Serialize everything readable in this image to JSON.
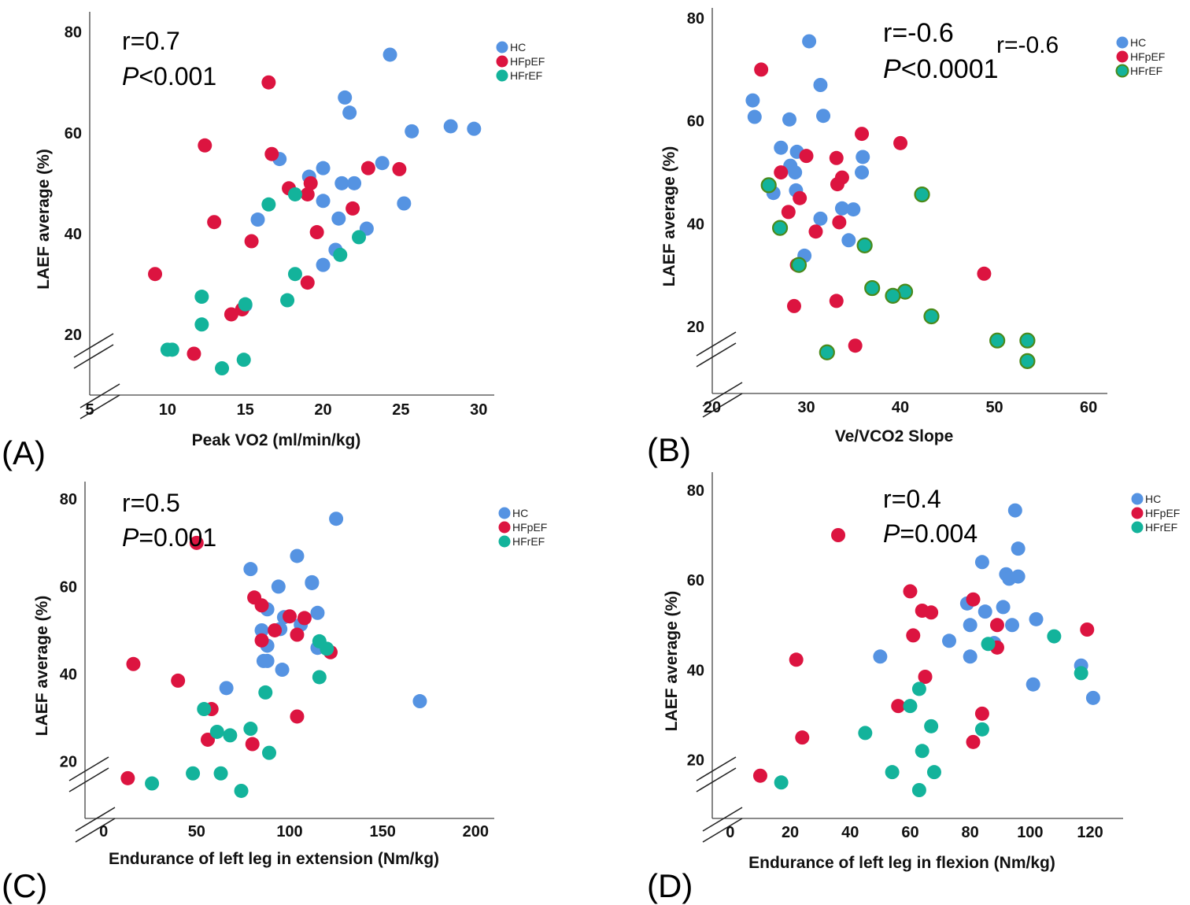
{
  "figure": {
    "colors": {
      "HC": "#5593e2",
      "HFpEF": "#dc1440",
      "HFrEF": "#13b39b",
      "HFrEF_outline": "#4a8a1a"
    },
    "icon": "scatter-plot-icon"
  },
  "chart_data": [
    {
      "type": "scatter",
      "panel_label": "(A)",
      "stat_r": "r=0.7",
      "stat_p_italic": "P",
      "stat_p_rest": "<0.001",
      "xlabel": "Peak VO2 (ml/min/kg)",
      "ylabel": "LAEF average (%)",
      "xlim": [
        5,
        31
      ],
      "ylim": [
        8,
        84
      ],
      "xticks": [
        5,
        10,
        15,
        20,
        25,
        30
      ],
      "yticks": [
        20,
        40,
        60,
        80
      ],
      "legend": [
        "HC",
        "HFpEF",
        "HFrEF"
      ],
      "legend_position": "top-right",
      "axis_break": true,
      "series": [
        {
          "name": "HC",
          "points": [
            [
              24.3,
              75.5
            ],
            [
              21.4,
              67
            ],
            [
              21.7,
              64
            ],
            [
              25.7,
              60.3
            ],
            [
              28.2,
              61.3
            ],
            [
              29.7,
              60.8
            ],
            [
              17.2,
              54.8
            ],
            [
              23.8,
              54
            ],
            [
              19.1,
              51.3
            ],
            [
              20.0,
              53
            ],
            [
              21.2,
              50
            ],
            [
              22.0,
              50
            ],
            [
              20.0,
              46.5
            ],
            [
              25.2,
              46
            ],
            [
              15.8,
              42.8
            ],
            [
              21.0,
              43
            ],
            [
              22.8,
              41
            ],
            [
              20.8,
              36.8
            ],
            [
              20.0,
              33.8
            ],
            [
              15.0,
              25.8
            ]
          ]
        },
        {
          "name": "HFpEF",
          "points": [
            [
              16.5,
              70
            ],
            [
              12.4,
              57.5
            ],
            [
              16.7,
              55.8
            ],
            [
              22.9,
              53
            ],
            [
              24.9,
              52.8
            ],
            [
              19.2,
              50
            ],
            [
              19.0,
              47.8
            ],
            [
              17.8,
              49
            ],
            [
              21.9,
              45
            ],
            [
              13.0,
              42.3
            ],
            [
              19.6,
              40.3
            ],
            [
              15.4,
              38.5
            ],
            [
              9.2,
              32
            ],
            [
              19.0,
              30.3
            ],
            [
              14.8,
              25
            ],
            [
              14.1,
              24
            ],
            [
              11.7,
              16.2
            ]
          ]
        },
        {
          "name": "HFrEF",
          "points": [
            [
              16.5,
              45.8
            ],
            [
              18.2,
              47.8
            ],
            [
              22.3,
              39.3
            ],
            [
              21.1,
              35.8
            ],
            [
              18.2,
              32
            ],
            [
              12.2,
              27.5
            ],
            [
              17.7,
              26.8
            ],
            [
              15.0,
              26
            ],
            [
              12.2,
              22
            ],
            [
              10.0,
              17
            ],
            [
              10.3,
              17
            ],
            [
              14.9,
              15
            ],
            [
              13.5,
              13.3
            ]
          ]
        }
      ]
    },
    {
      "type": "scatter",
      "panel_label": "(B)",
      "stat_r": "r=-0.6",
      "stat_r_extra": "r=-0.6",
      "stat_p_italic": "P",
      "stat_p_rest": "<0.0001",
      "xlabel": "Ve/VCO2 Slope",
      "ylabel": "LAEF average (%)",
      "xlim": [
        20,
        62
      ],
      "ylim": [
        7,
        82
      ],
      "xticks": [
        20,
        30,
        40,
        50,
        60
      ],
      "yticks": [
        20,
        40,
        60,
        80
      ],
      "legend": [
        "HC",
        "HFpEF",
        "HFrEF"
      ],
      "legend_position": "top-right",
      "axis_break": true,
      "series": [
        {
          "name": "HC",
          "points": [
            [
              30.3,
              75.5
            ],
            [
              31.5,
              67
            ],
            [
              24.3,
              64
            ],
            [
              24.5,
              60.8
            ],
            [
              28.2,
              60.3
            ],
            [
              31.8,
              61
            ],
            [
              27.3,
              54.8
            ],
            [
              29.0,
              54
            ],
            [
              28.3,
              51.3
            ],
            [
              28.8,
              50
            ],
            [
              36.0,
              53
            ],
            [
              35.9,
              50
            ],
            [
              28.9,
              46.5
            ],
            [
              26.5,
              46
            ],
            [
              33.8,
              43
            ],
            [
              35.0,
              42.8
            ],
            [
              31.5,
              41
            ],
            [
              34.5,
              36.8
            ],
            [
              29.8,
              33.8
            ]
          ]
        },
        {
          "name": "HFpEF",
          "points": [
            [
              25.2,
              70
            ],
            [
              35.9,
              57.5
            ],
            [
              40.0,
              55.7
            ],
            [
              30.0,
              53.2
            ],
            [
              33.2,
              52.8
            ],
            [
              27.3,
              50
            ],
            [
              33.8,
              49
            ],
            [
              33.3,
              47.7
            ],
            [
              29.3,
              45
            ],
            [
              28.1,
              42.3
            ],
            [
              33.5,
              40.3
            ],
            [
              31.0,
              38.5
            ],
            [
              29.0,
              32
            ],
            [
              48.9,
              30.3
            ],
            [
              33.2,
              25
            ],
            [
              28.7,
              24
            ],
            [
              35.2,
              16.3
            ]
          ]
        },
        {
          "name": "HFrEF",
          "points": [
            [
              26.0,
              47.5
            ],
            [
              42.3,
              45.7
            ],
            [
              27.2,
              39.2
            ],
            [
              36.2,
              35.8
            ],
            [
              29.2,
              32
            ],
            [
              37.0,
              27.5
            ],
            [
              40.5,
              26.8
            ],
            [
              39.2,
              26
            ],
            [
              43.3,
              22
            ],
            [
              50.3,
              17.3
            ],
            [
              53.5,
              17.3
            ],
            [
              32.2,
              15
            ],
            [
              53.5,
              13.3
            ]
          ]
        }
      ]
    },
    {
      "type": "scatter",
      "panel_label": "(C)",
      "stat_r": "r=0.5",
      "stat_p_italic": "P",
      "stat_p_rest": "=0.001",
      "xlabel": "Endurance of left leg in extension (Nm/kg)",
      "ylabel": "LAEF average (%)",
      "xlim": [
        -10,
        210
      ],
      "ylim": [
        7,
        84
      ],
      "xticks": [
        0,
        50,
        100,
        150,
        200
      ],
      "yticks": [
        20,
        40,
        60,
        80
      ],
      "legend": [
        "HC",
        "HFpEF",
        "HFrEF"
      ],
      "legend_position": "top-right",
      "axis_break": true,
      "series": [
        {
          "name": "HC",
          "points": [
            [
              125,
              75.5
            ],
            [
              79,
              64
            ],
            [
              104,
              67
            ],
            [
              94,
              60
            ],
            [
              112,
              61
            ],
            [
              112,
              60.8
            ],
            [
              115,
              54
            ],
            [
              88,
              54.8
            ],
            [
              97,
              53
            ],
            [
              95,
              50.3
            ],
            [
              85,
              50
            ],
            [
              106,
              51.3
            ],
            [
              115,
              46
            ],
            [
              86,
              43
            ],
            [
              88,
              43
            ],
            [
              88,
              46.5
            ],
            [
              96,
              41
            ],
            [
              66,
              36.8
            ],
            [
              170,
              33.8
            ]
          ]
        },
        {
          "name": "HFpEF",
          "points": [
            [
              50,
              70
            ],
            [
              81,
              57.5
            ],
            [
              85,
              55.7
            ],
            [
              100,
              53.2
            ],
            [
              108,
              52.8
            ],
            [
              92,
              50
            ],
            [
              104,
              49
            ],
            [
              85,
              47.7
            ],
            [
              122,
              45
            ],
            [
              16,
              42.3
            ],
            [
              40,
              38.5
            ],
            [
              58,
              32
            ],
            [
              104,
              30.3
            ],
            [
              56,
              25
            ],
            [
              80,
              24
            ],
            [
              13,
              16.2
            ]
          ]
        },
        {
          "name": "HFrEF",
          "points": [
            [
              116,
              47.5
            ],
            [
              120,
              45.8
            ],
            [
              116,
              39.3
            ],
            [
              87,
              35.8
            ],
            [
              54,
              32
            ],
            [
              61,
              26.8
            ],
            [
              68,
              26
            ],
            [
              79,
              27.5
            ],
            [
              89,
              22
            ],
            [
              48,
              17.3
            ],
            [
              63,
              17.3
            ],
            [
              26,
              15
            ],
            [
              74,
              13.3
            ]
          ]
        }
      ]
    },
    {
      "type": "scatter",
      "panel_label": "(D)",
      "stat_r": "r=0.4",
      "stat_p_italic": "P",
      "stat_p_rest": "=0.004",
      "xlabel": "Endurance of left leg in flexion (Nm/kg)",
      "ylabel": "LAEF average (%)",
      "xlim": [
        -6,
        131
      ],
      "ylim": [
        7,
        84
      ],
      "xticks": [
        0,
        20,
        40,
        60,
        80,
        100,
        120
      ],
      "yticks": [
        20,
        40,
        60,
        80
      ],
      "legend": [
        "HC",
        "HFpEF",
        "HFrEF"
      ],
      "legend_position": "top-right",
      "axis_break": true,
      "series": [
        {
          "name": "HC",
          "points": [
            [
              95,
              75.5
            ],
            [
              96,
              67
            ],
            [
              84,
              64
            ],
            [
              92,
              61.3
            ],
            [
              93,
              60.3
            ],
            [
              96,
              60.8
            ],
            [
              79,
              54.8
            ],
            [
              91,
              54
            ],
            [
              102,
              51.3
            ],
            [
              85,
              53
            ],
            [
              80,
              50
            ],
            [
              94,
              50
            ],
            [
              88,
              46
            ],
            [
              73,
              46.5
            ],
            [
              80,
              43
            ],
            [
              50,
              43
            ],
            [
              117,
              41
            ],
            [
              101,
              36.8
            ],
            [
              121,
              33.8
            ]
          ]
        },
        {
          "name": "HFpEF",
          "points": [
            [
              36,
              70
            ],
            [
              60,
              57.5
            ],
            [
              81,
              55.7
            ],
            [
              64,
              53.2
            ],
            [
              67,
              52.8
            ],
            [
              89,
              50
            ],
            [
              119,
              49
            ],
            [
              61,
              47.7
            ],
            [
              89,
              45
            ],
            [
              22,
              42.3
            ],
            [
              65,
              38.5
            ],
            [
              56,
              32
            ],
            [
              84,
              30.3
            ],
            [
              24,
              25
            ],
            [
              81,
              24
            ],
            [
              10,
              16.5
            ]
          ]
        },
        {
          "name": "HFrEF",
          "points": [
            [
              108,
              47.5
            ],
            [
              86,
              45.8
            ],
            [
              117,
              39.3
            ],
            [
              63,
              35.8
            ],
            [
              60,
              32
            ],
            [
              67,
              27.5
            ],
            [
              84,
              26.8
            ],
            [
              45,
              26
            ],
            [
              64,
              22
            ],
            [
              68,
              17.3
            ],
            [
              54,
              17.3
            ],
            [
              17,
              15
            ],
            [
              63,
              13.3
            ]
          ]
        }
      ]
    }
  ]
}
